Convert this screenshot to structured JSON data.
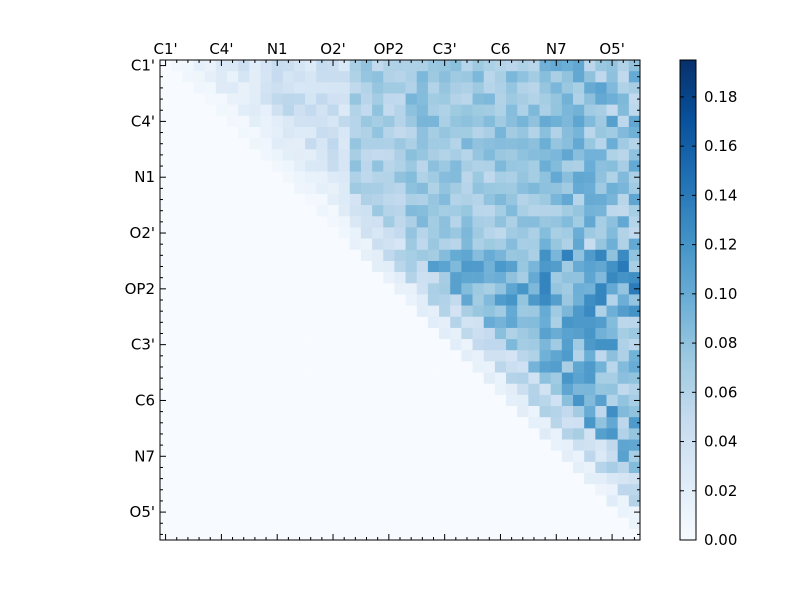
{
  "chart_data": {
    "type": "heatmap",
    "title": "",
    "xlabel": "",
    "ylabel": "",
    "size": 43,
    "ticks": [
      {
        "label": "C1'",
        "index": 0
      },
      {
        "label": "C4'",
        "index": 5
      },
      {
        "label": "N1",
        "index": 10
      },
      {
        "label": "O2'",
        "index": 15
      },
      {
        "label": "OP2",
        "index": 20
      },
      {
        "label": "C3'",
        "index": 25
      },
      {
        "label": "C6",
        "index": 30
      },
      {
        "label": "N7",
        "index": 35
      },
      {
        "label": "O5'",
        "index": 40
      }
    ],
    "colorbar": {
      "min": 0.0,
      "max": 0.195,
      "ticks": [
        "0.00",
        "0.02",
        "0.04",
        "0.06",
        "0.08",
        "0.10",
        "0.12",
        "0.14",
        "0.16",
        "0.18"
      ],
      "tick_values": [
        0.0,
        0.02,
        0.04,
        0.06,
        0.08,
        0.1,
        0.12,
        0.14,
        0.16,
        0.18
      ]
    },
    "colormap": "Blues",
    "upper_triangle_only": true,
    "note_values": "approximate, upper triangle distances per atom pair",
    "block_rows": [
      [
        0,
        9,
        0.02,
        0.045
      ],
      [
        10,
        16,
        0.015,
        0.04
      ],
      [
        17,
        21,
        0.04,
        0.1
      ],
      [
        22,
        25,
        0.03,
        0.08
      ],
      [
        26,
        33,
        0.02,
        0.07
      ],
      [
        34,
        42,
        0.01,
        0.05
      ]
    ],
    "block_cols": [
      [
        0,
        9,
        0.02,
        0.045
      ],
      [
        10,
        16,
        0.03,
        0.07
      ],
      [
        17,
        21,
        0.08,
        0.12
      ],
      [
        22,
        33,
        0.09,
        0.14
      ],
      [
        34,
        37,
        0.1,
        0.17
      ],
      [
        38,
        42,
        0.08,
        0.18
      ]
    ]
  }
}
